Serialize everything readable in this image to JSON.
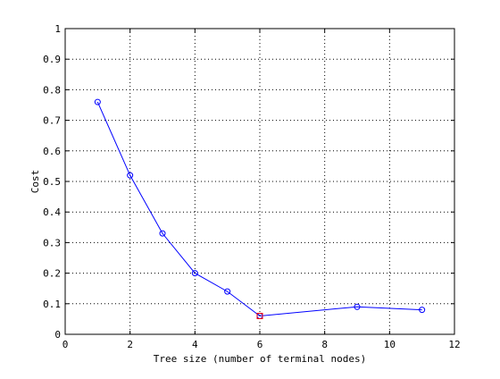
{
  "chart_data": {
    "type": "line",
    "title": "",
    "xlabel": "Tree size (number of terminal nodes)",
    "ylabel": "Cost",
    "xlim": [
      0,
      12
    ],
    "ylim": [
      0,
      1
    ],
    "xticks": [
      0,
      2,
      4,
      6,
      8,
      10,
      12
    ],
    "yticks": [
      0,
      0.1,
      0.2,
      0.3,
      0.4,
      0.5,
      0.6,
      0.7,
      0.8,
      0.9,
      1
    ],
    "xtick_labels": [
      "0",
      "2",
      "4",
      "6",
      "8",
      "10",
      "12"
    ],
    "ytick_labels": [
      "0",
      "0.1",
      "0.2",
      "0.3",
      "0.4",
      "0.5",
      "0.6",
      "0.7",
      "0.8",
      "0.9",
      "1"
    ],
    "grid": true,
    "series": [
      {
        "marker": "circle",
        "color": "#0000ff",
        "x": [
          1,
          2,
          3,
          4,
          5,
          6,
          9,
          11
        ],
        "y": [
          0.76,
          0.52,
          0.33,
          0.2,
          0.14,
          0.06,
          0.09,
          0.08
        ]
      }
    ],
    "highlight": {
      "marker": "square",
      "color": "#ff0000",
      "x": 6,
      "y": 0.06
    }
  }
}
